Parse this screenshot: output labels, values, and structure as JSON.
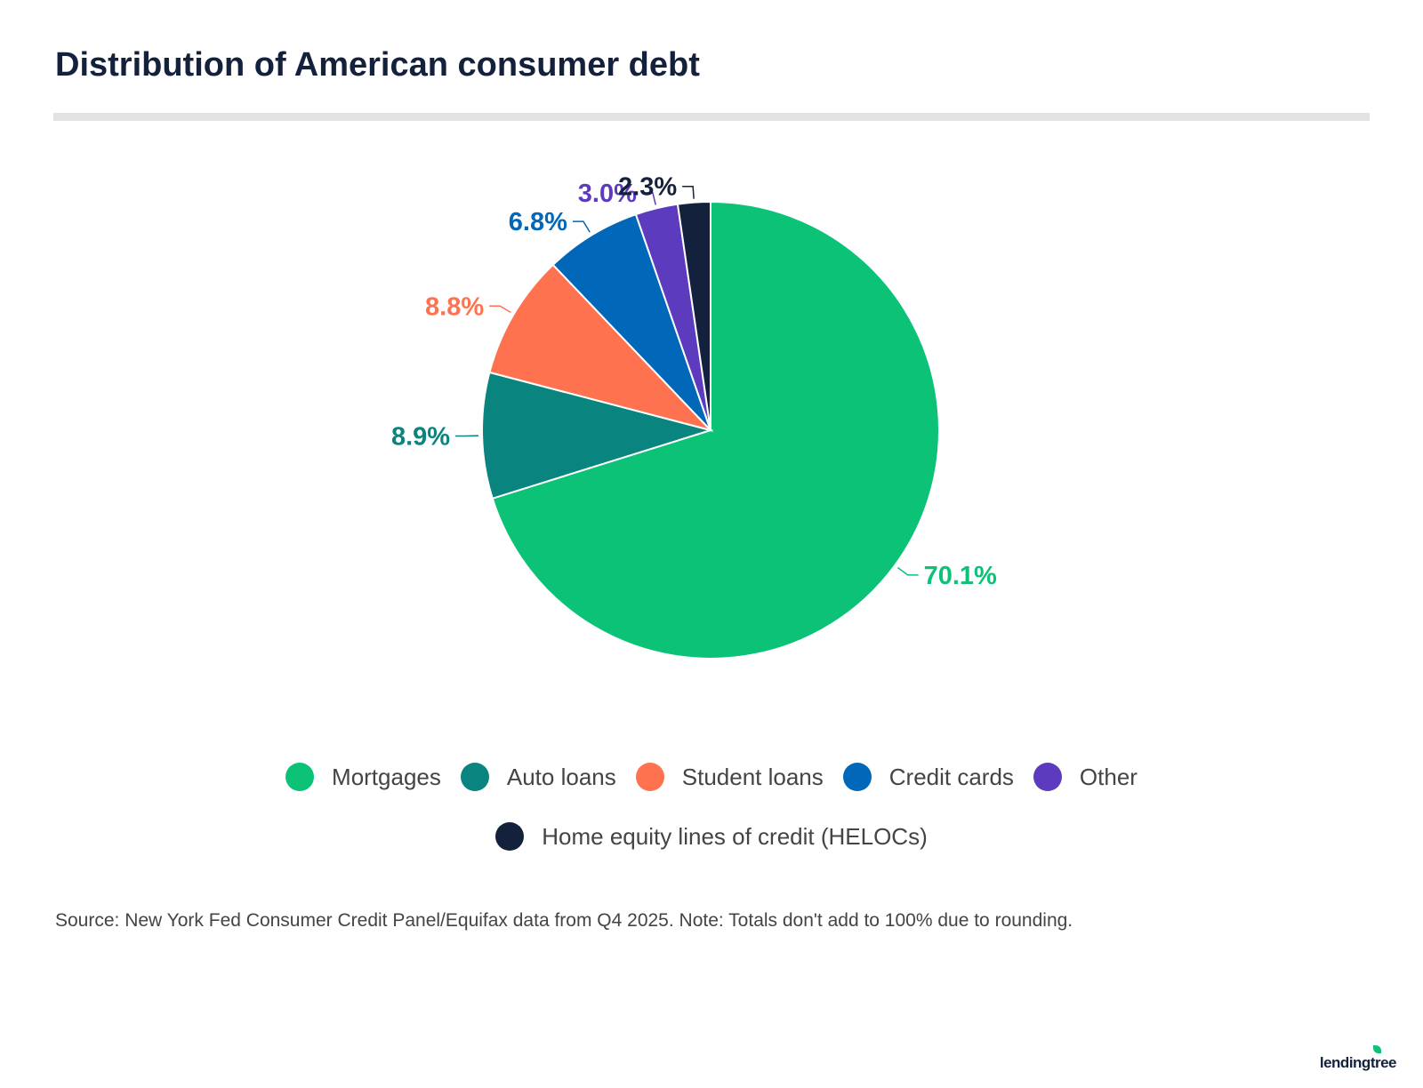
{
  "chart_data": {
    "type": "pie",
    "title": "Distribution of American consumer debt",
    "slices": [
      {
        "label": "Mortgages",
        "value": 70.1,
        "display": "70.1%",
        "color": "#0bc277"
      },
      {
        "label": "Auto loans",
        "value": 8.9,
        "display": "8.9%",
        "color": "#0a847e"
      },
      {
        "label": "Student loans",
        "value": 8.8,
        "display": "8.8%",
        "color": "#ff7250"
      },
      {
        "label": "Credit cards",
        "value": 6.8,
        "display": "6.8%",
        "color": "#0067b9"
      },
      {
        "label": "Other",
        "value": 3.0,
        "display": "3.0%",
        "color": "#5d3bbf"
      },
      {
        "label": "Home equity lines of credit (HELOCs)",
        "value": 2.3,
        "display": "2.3%",
        "color": "#14213d"
      }
    ],
    "legend_placement": "bottom",
    "source": "Source: New York Fed Consumer Credit Panel/Equifax data from Q4 2025. Note: Totals don't add to 100% due to rounding."
  },
  "logo": "lendingtree"
}
